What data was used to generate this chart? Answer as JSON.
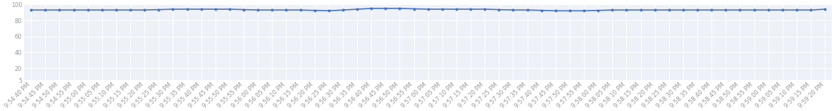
{
  "title": "",
  "ylabel": "",
  "xlabel": "",
  "ylim": [
    5,
    100
  ],
  "yticks": [
    5,
    20,
    40,
    60,
    80,
    100
  ],
  "line_color": "#4472c4",
  "line_width": 1.2,
  "marker": "o",
  "marker_size": 2.5,
  "marker_color": "#4472c4",
  "bg_color": "#ffffff",
  "plot_bg_color": "#eef1f8",
  "grid_color": "#ffffff",
  "tick_label_color": "#999999",
  "tick_label_fontsize": 6.0,
  "x_label_rotation": 45,
  "x_labels": [
    "9:54:40 PM",
    "9:54:45 PM",
    "9:54:50 PM",
    "9:54:55 PM",
    "9:55:00 PM",
    "9:55:05 PM",
    "9:55:10 PM",
    "9:55:15 PM",
    "9:55:20 PM",
    "9:55:25 PM",
    "9:55:30 PM",
    "9:55:35 PM",
    "9:55:40 PM",
    "9:55:45 PM",
    "9:55:50 PM",
    "9:55:55 PM",
    "9:56:00 PM",
    "9:56:05 PM",
    "9:56:10 PM",
    "9:56:15 PM",
    "9:56:20 PM",
    "9:56:25 PM",
    "9:56:30 PM",
    "9:56:35 PM",
    "9:56:40 PM",
    "9:56:45 PM",
    "9:56:50 PM",
    "9:56:55 PM",
    "9:57:00 PM",
    "9:57:05 PM",
    "9:57:10 PM",
    "9:57:15 PM",
    "9:57:20 PM",
    "9:57:25 PM",
    "9:57:30 PM",
    "9:57:35 PM",
    "9:57:40 PM",
    "9:57:45 PM",
    "9:57:50 PM",
    "9:57:55 PM",
    "9:58:00 PM",
    "9:58:05 PM",
    "9:58:10 PM",
    "9:58:15 PM",
    "9:58:20 PM",
    "9:58:25 PM",
    "9:58:30 PM",
    "9:58:35 PM",
    "9:58:40 PM",
    "9:58:45 PM",
    "9:58:50 PM",
    "9:58:55 PM",
    "9:59:00 PM",
    "9:59:05 PM",
    "9:59:10 PM",
    "9:59:15 PM",
    "9:59:20 PM"
  ],
  "y_values": [
    93,
    93,
    93,
    93,
    93,
    93,
    93,
    93,
    93,
    93.5,
    94,
    94,
    94,
    94,
    94,
    93.5,
    93,
    93,
    93,
    93,
    92.5,
    92,
    93,
    94,
    95,
    95,
    95,
    94.5,
    94,
    94,
    94,
    94,
    94,
    93.5,
    93,
    93,
    92.5,
    92,
    92,
    92,
    92.5,
    93,
    93,
    93,
    93,
    93,
    93,
    93,
    93,
    93,
    93,
    93,
    93,
    93,
    93,
    93,
    94
  ]
}
